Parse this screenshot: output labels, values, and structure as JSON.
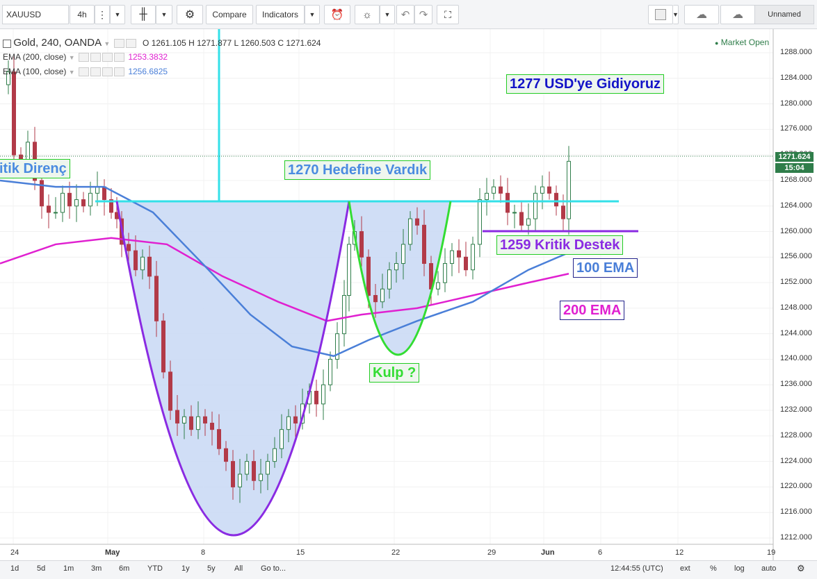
{
  "toolbar": {
    "symbol": "XAUUSD",
    "interval": "4h",
    "compare": "Compare",
    "indicators": "Indicators",
    "layout_name": "Unnamed"
  },
  "legend": {
    "main_title": "Gold, 240, OANDA",
    "ohlc": "O 1261.105  H 1271.877  L 1260.503  C 1271.624",
    "ema200_label": "EMA (200, close)",
    "ema200_value": "1253.3832",
    "ema100_label": "EMA (100, close)",
    "ema100_value": "1256.6825",
    "market_status": "Market Open"
  },
  "price_axis": [
    "1288.000",
    "1284.000",
    "1280.000",
    "1276.000",
    "1272.000",
    "1268.000",
    "1264.000",
    "1260.000",
    "1256.000",
    "1252.000",
    "1248.000",
    "1244.000",
    "1240.000",
    "1236.000",
    "1232.000",
    "1228.000",
    "1224.000",
    "1220.000",
    "1216.000",
    "1212.000"
  ],
  "last_price": "1271.624",
  "countdown": "15:04",
  "time_axis": [
    "24",
    "May",
    "8",
    "15",
    "22",
    "29",
    "Jun",
    "6",
    "12",
    "19"
  ],
  "annotations": {
    "target": "1277 USD'ye Gidiyoruz",
    "reached": "1270 Hedefine Vardık",
    "resistance": "itik Direnç",
    "support": "1259 Kritik Destek",
    "ema100": "100 EMA",
    "ema200": "200 EMA",
    "handle": "Kulp ?"
  },
  "bottom": {
    "ranges": [
      "1d",
      "5d",
      "1m",
      "3m",
      "6m",
      "YTD",
      "1y",
      "5y",
      "All"
    ],
    "goto": "Go to...",
    "clock": "12:44:55 (UTC)",
    "ext": "ext",
    "percent": "%",
    "log": "log",
    "auto": "auto"
  },
  "colors": {
    "ema200": "#e020d0",
    "ema100": "#4a7fd8",
    "cup": "#8a2be2",
    "handle": "#33dd33",
    "target_line": "#33e0e8",
    "up_candle": "#2f7d4a",
    "down_candle": "#b23a48"
  }
}
